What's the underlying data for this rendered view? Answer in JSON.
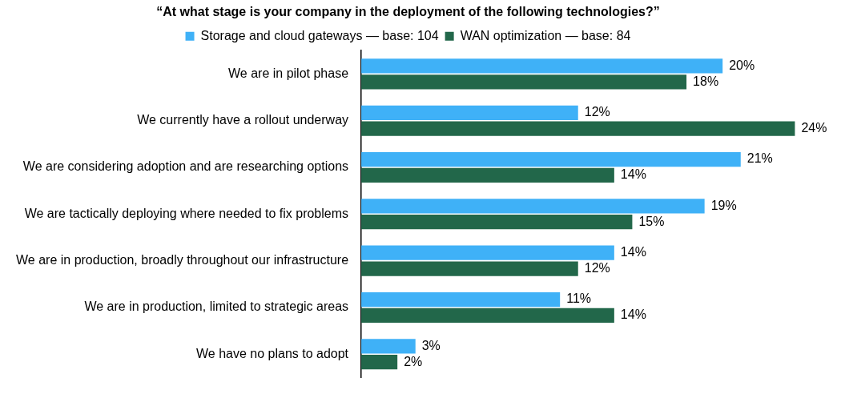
{
  "chart_data": {
    "type": "bar",
    "orientation": "horizontal",
    "title": "“At what stage is your company in the deployment of the following technologies?”",
    "categories": [
      "We are in pilot phase",
      "We currently have a rollout underway",
      "We are considering adoption and are researching options",
      "We are tactically deploying where needed to fix problems",
      "We are in production, broadly throughout our infrastructure",
      "We are in production, limited to strategic areas",
      "We have no plans to adopt"
    ],
    "series": [
      {
        "name": "Storage and cloud gateways — base: 104",
        "color": "#3fb1f7",
        "values": [
          20,
          12,
          21,
          19,
          14,
          11,
          3
        ],
        "value_labels": [
          "20%",
          "12%",
          "21%",
          "19%",
          "14%",
          "11%",
          "3%"
        ]
      },
      {
        "name": "WAN optimization — base: 84",
        "color": "#22674a",
        "values": [
          18,
          24,
          14,
          15,
          12,
          14,
          2
        ],
        "value_labels": [
          "18%",
          "24%",
          "14%",
          "15%",
          "12%",
          "14%",
          "2%"
        ]
      }
    ],
    "legend": "top",
    "grid": false
  }
}
